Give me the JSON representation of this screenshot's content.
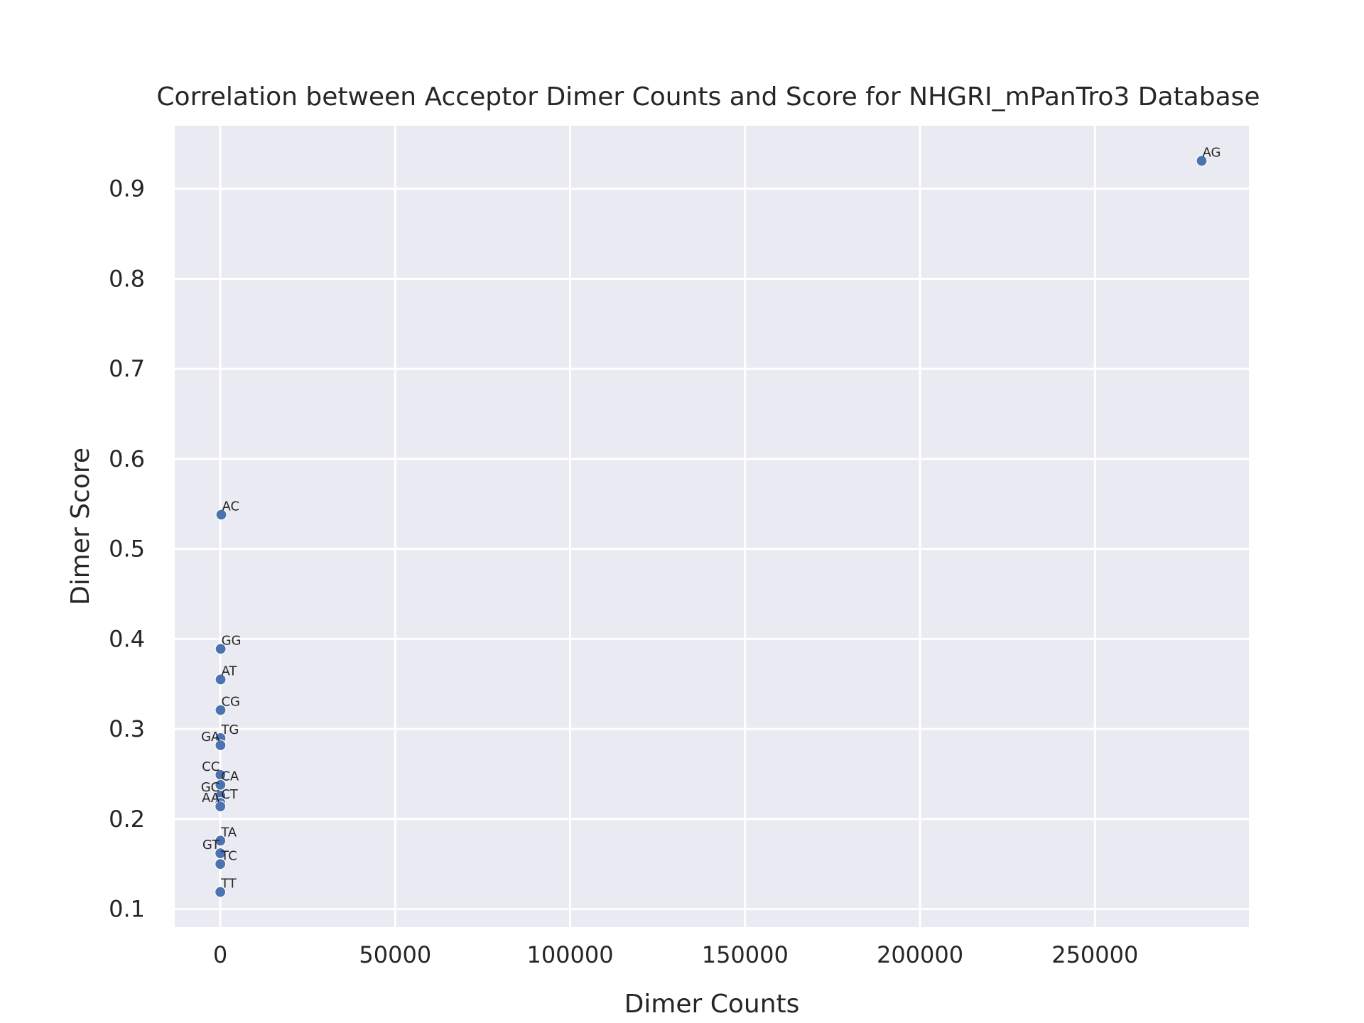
{
  "chart_data": {
    "type": "scatter",
    "title": "Correlation between Acceptor Dimer Counts and Score for NHGRI_mPanTro3 Database",
    "xlabel": "Dimer Counts",
    "ylabel": "Dimer Score",
    "xlim": [
      -13000,
      294000
    ],
    "ylim": [
      0.08,
      0.97
    ],
    "xticks": [
      0,
      50000,
      100000,
      150000,
      200000,
      250000
    ],
    "yticks": [
      0.1,
      0.2,
      0.3,
      0.4,
      0.5,
      0.6,
      0.7,
      0.8,
      0.9
    ],
    "grid": true,
    "point_color": "#4c72b0",
    "background_color": "#eaeaf2",
    "points": [
      {
        "label": "AG",
        "x": 280500,
        "y": 0.931,
        "anchor": "right"
      },
      {
        "label": "AC",
        "x": 300,
        "y": 0.538,
        "anchor": "right"
      },
      {
        "label": "GG",
        "x": 120,
        "y": 0.389,
        "anchor": "right"
      },
      {
        "label": "AT",
        "x": 100,
        "y": 0.355,
        "anchor": "right"
      },
      {
        "label": "CG",
        "x": 90,
        "y": 0.321,
        "anchor": "right"
      },
      {
        "label": "TG",
        "x": 80,
        "y": 0.29,
        "anchor": "right"
      },
      {
        "label": "GA",
        "x": 70,
        "y": 0.282,
        "anchor": "left"
      },
      {
        "label": "CC",
        "x": 60,
        "y": 0.249,
        "anchor": "left"
      },
      {
        "label": "CA",
        "x": 55,
        "y": 0.238,
        "anchor": "right"
      },
      {
        "label": "GC",
        "x": 50,
        "y": 0.226,
        "anchor": "left"
      },
      {
        "label": "CT",
        "x": 45,
        "y": 0.218,
        "anchor": "right"
      },
      {
        "label": "AA",
        "x": 40,
        "y": 0.214,
        "anchor": "left"
      },
      {
        "label": "TA",
        "x": 35,
        "y": 0.176,
        "anchor": "right"
      },
      {
        "label": "GT",
        "x": 30,
        "y": 0.162,
        "anchor": "left"
      },
      {
        "label": "TC",
        "x": 25,
        "y": 0.15,
        "anchor": "right"
      },
      {
        "label": "TT",
        "x": 20,
        "y": 0.119,
        "anchor": "right"
      }
    ]
  }
}
